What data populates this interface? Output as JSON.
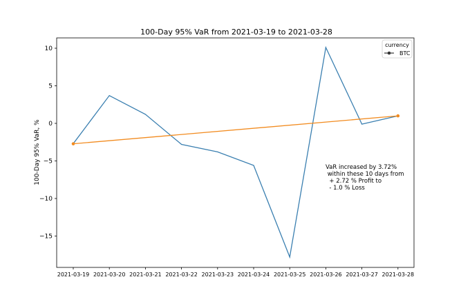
{
  "chart_data": {
    "type": "line",
    "title": "100-Day 95% VaR from 2021-03-19 to 2021-03-28",
    "xlabel": "",
    "ylabel": "100-Day 95% VaR, %",
    "categories": [
      "2021-03-19",
      "2021-03-20",
      "2021-03-21",
      "2021-03-22",
      "2021-03-23",
      "2021-03-24",
      "2021-03-25",
      "2021-03-26",
      "2021-03-27",
      "2021-03-28"
    ],
    "ylim": [
      -18.8,
      11.5
    ],
    "yticks": [
      10,
      5,
      0,
      -5,
      -10,
      -15
    ],
    "ytick_labels": [
      "10",
      "5",
      "0",
      "−5",
      "−10",
      "−15"
    ],
    "series": [
      {
        "name": "BTC",
        "color": "#3a7fb0",
        "values": [
          -2.7,
          3.7,
          1.2,
          -2.8,
          -3.8,
          -5.6,
          -17.8,
          10.1,
          -0.1,
          1.0
        ]
      }
    ],
    "trend": {
      "color": "#f28b1f",
      "start": {
        "category": "2021-03-19",
        "value": -2.72
      },
      "end": {
        "category": "2021-03-28",
        "value": 1.0
      }
    },
    "legend": {
      "title": "currency",
      "placement": "top-right"
    },
    "grid": false,
    "annotation": [
      "VaR increased by 3.72%",
      " within these 10 days from",
      "  + 2.72 % Profit to",
      "  - 1.0 % Loss"
    ]
  }
}
